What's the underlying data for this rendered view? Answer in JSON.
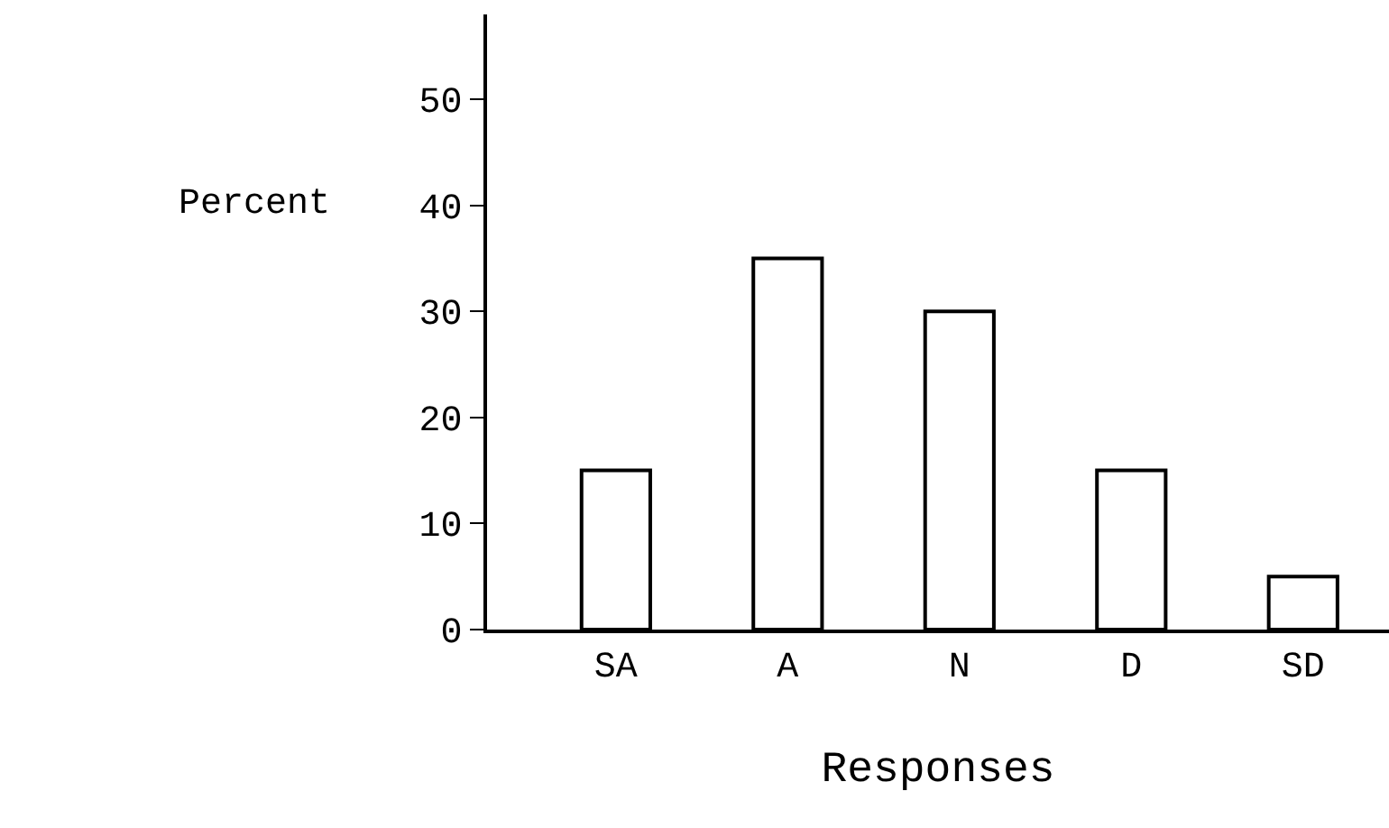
{
  "chart_data": {
    "type": "bar",
    "categories": [
      "SA",
      "A",
      "N",
      "D",
      "SD"
    ],
    "values": [
      15,
      35,
      30,
      15,
      5
    ],
    "color": "#ffffff",
    "xlabel": "Responses",
    "ylabel": "Percent",
    "ylim": [
      0,
      58
    ],
    "yticks": [
      0,
      10,
      20,
      30,
      40,
      50
    ],
    "legend": false
  }
}
